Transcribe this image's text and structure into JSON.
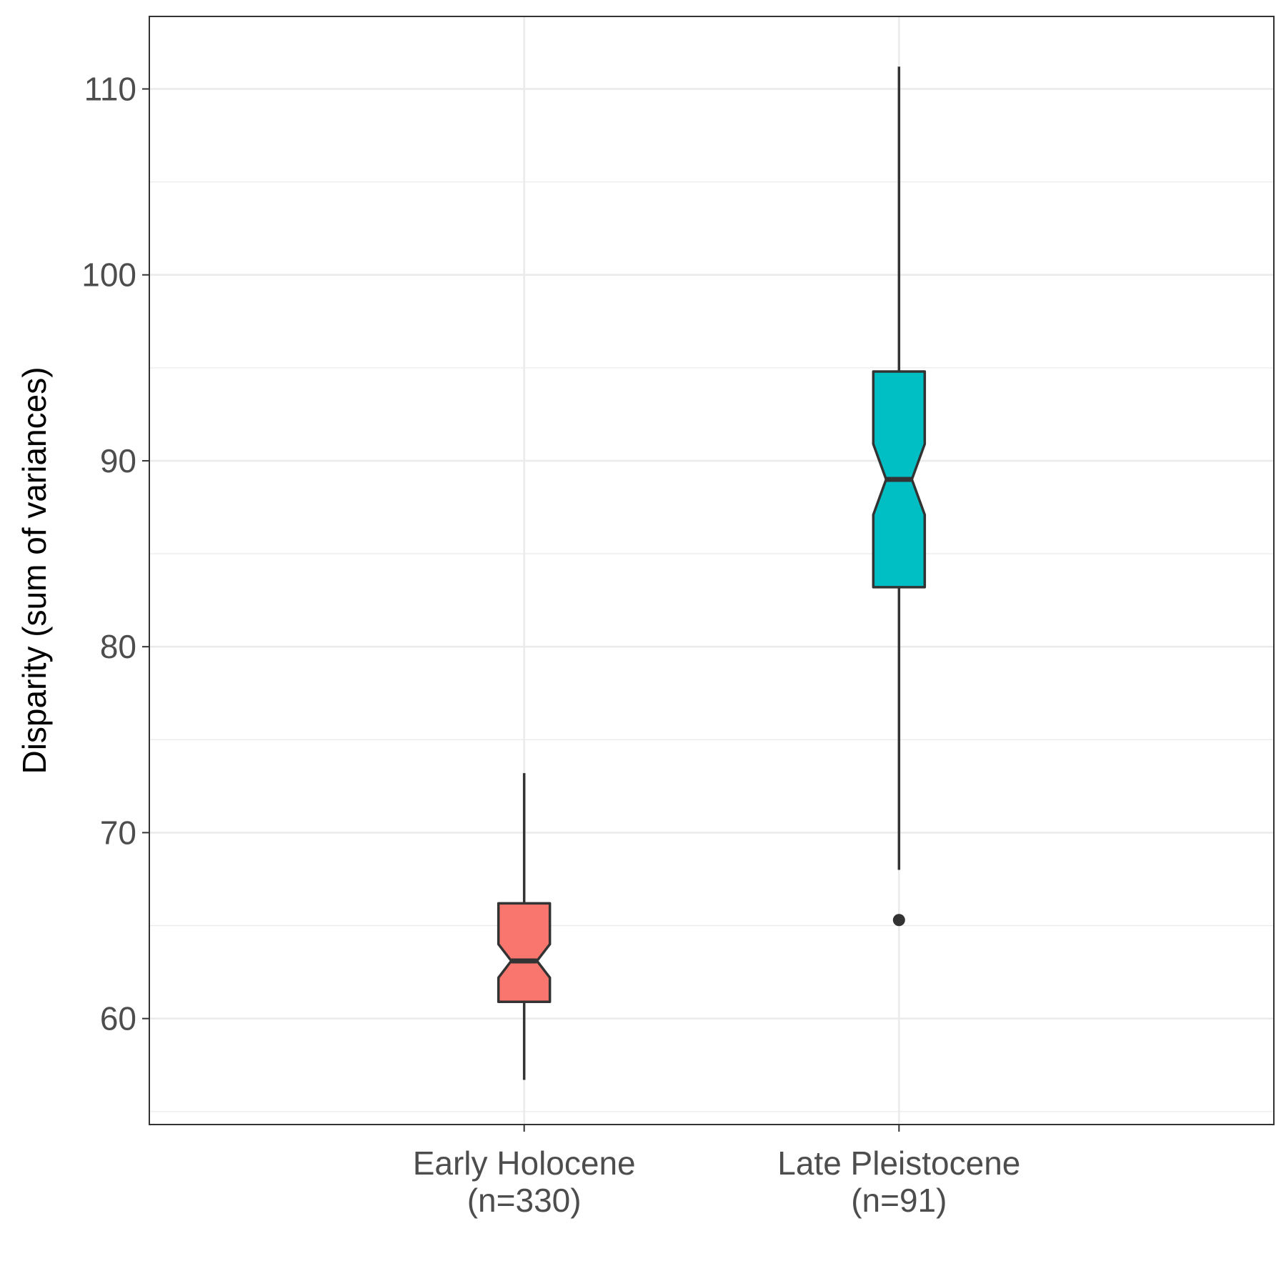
{
  "chart_data": {
    "type": "boxplot",
    "notched": true,
    "xlabel": "",
    "ylabel": "Disparity (sum of variances)",
    "ylim": [
      54.3,
      113.9
    ],
    "yticks": [
      60,
      70,
      80,
      90,
      100,
      110
    ],
    "grid": true,
    "categories": [
      {
        "line1": "Early Holocene",
        "line2": "(n=330)"
      },
      {
        "line1": "Late Pleistocene",
        "line2": "(n=91)"
      }
    ],
    "boxes": [
      {
        "category": "Early Holocene",
        "color": "#F8766D",
        "whisker_low": 56.7,
        "q1": 60.9,
        "median": 63.1,
        "q3": 66.2,
        "whisker_high": 73.2,
        "notch_low": 62.2,
        "notch_high": 64.0,
        "outliers": []
      },
      {
        "category": "Late Pleistocene",
        "color": "#00BFC4",
        "whisker_low": 68.0,
        "q1": 83.2,
        "median": 89.0,
        "q3": 94.8,
        "whisker_high": 111.2,
        "notch_low": 87.1,
        "notch_high": 90.9,
        "outliers": [
          65.3
        ]
      }
    ]
  }
}
